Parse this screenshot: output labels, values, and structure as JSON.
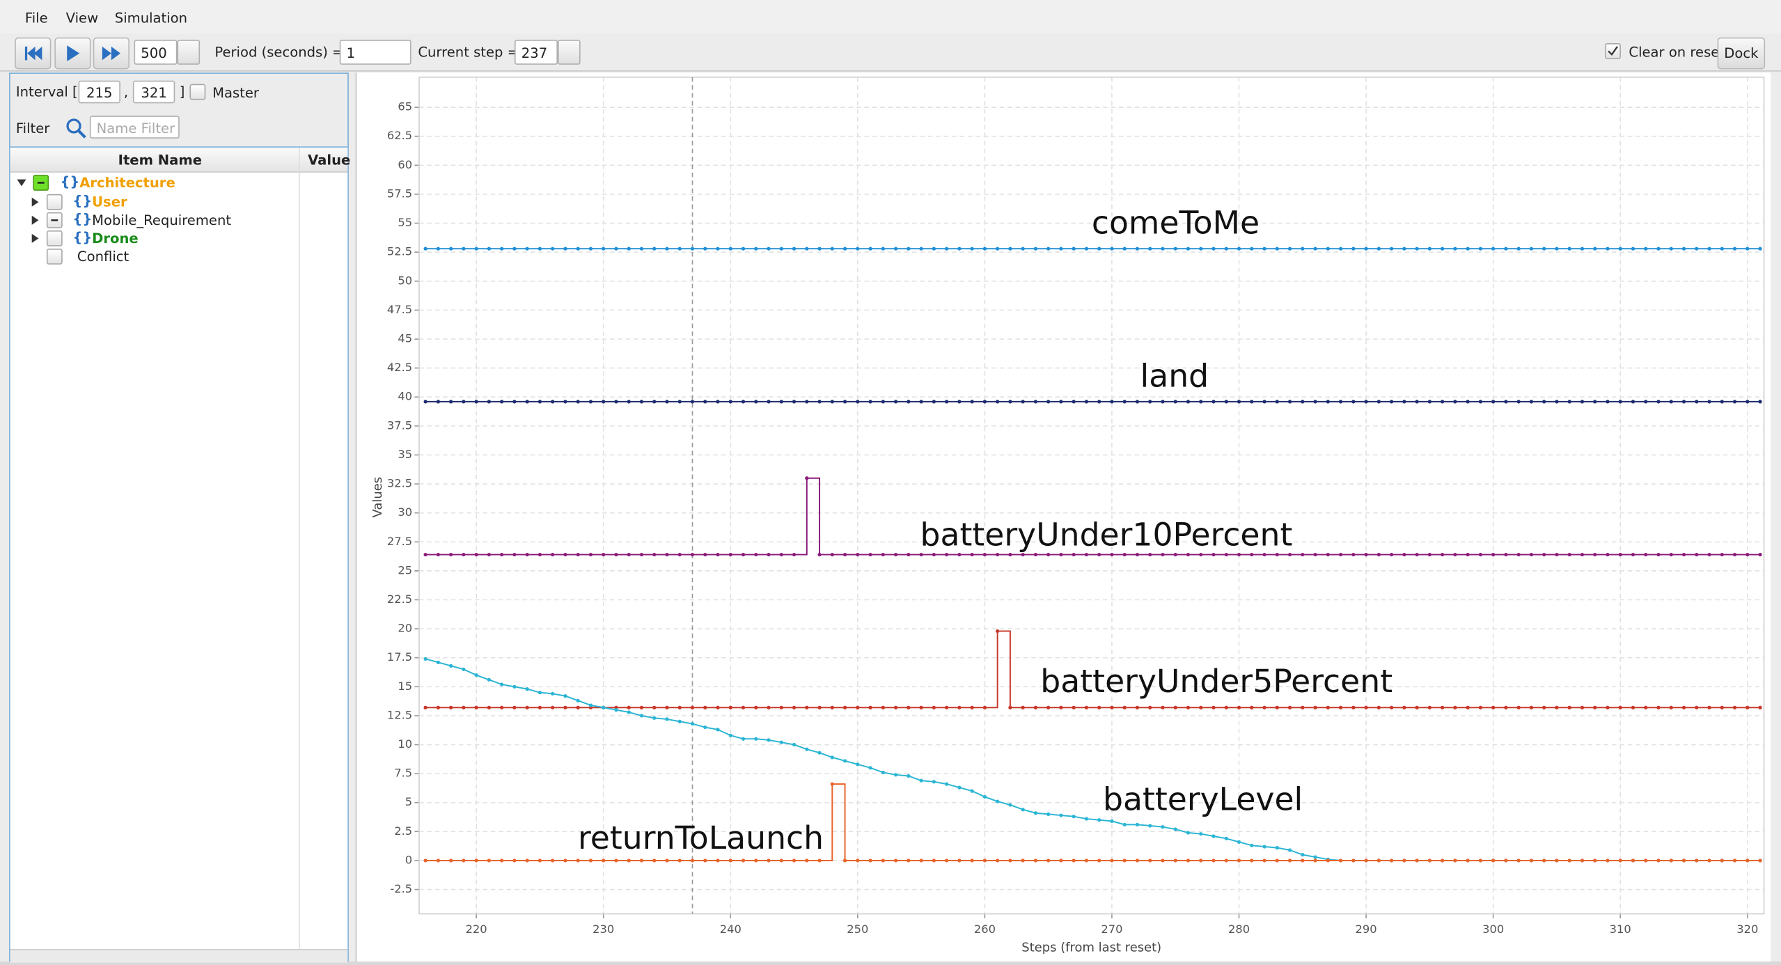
{
  "menu": [
    "File",
    "View",
    "Simulation"
  ],
  "toolbar": {
    "speed": 500,
    "period_label": "Period (seconds) =",
    "period": 1,
    "current_step_label": "Current step =",
    "current_step": 237,
    "clear_on_reset": "Clear on reset",
    "dock": "Dock"
  },
  "sidebar": {
    "interval_label": "Interval [",
    "interval_start": 215,
    "interval_sep": ",",
    "interval_end": 321,
    "interval_close": "]",
    "master": "Master",
    "filter_label": "Filter",
    "filter_placeholder": "Name Filter",
    "columns": [
      "Item Name",
      "Value"
    ],
    "tree": [
      {
        "label": "Architecture"
      },
      {
        "label": "User"
      },
      {
        "label": "Mobile_Requirement"
      },
      {
        "label": "Drone"
      },
      {
        "label": "Conflict"
      }
    ]
  },
  "chart_data": {
    "type": "line",
    "xlabel": "Steps (from last reset)",
    "ylabel": "Values",
    "grid": true,
    "x": [
      216,
      217,
      218,
      219,
      220,
      221,
      222,
      223,
      224,
      225,
      226,
      227,
      228,
      229,
      230,
      231,
      232,
      233,
      234,
      235,
      236,
      237,
      238,
      239,
      240,
      241,
      242,
      243,
      244,
      245,
      246,
      247,
      248,
      249,
      250,
      251,
      252,
      253,
      254,
      255,
      256,
      257,
      258,
      259,
      260,
      261,
      262,
      263,
      264,
      265,
      266,
      267,
      268,
      269,
      270,
      271,
      272,
      273,
      274,
      275,
      276,
      277,
      278,
      279,
      280,
      281,
      282,
      283,
      284,
      285,
      286,
      287,
      288,
      289,
      290,
      291,
      292,
      293,
      294,
      295,
      296,
      297,
      298,
      299,
      300,
      301,
      302,
      303,
      304,
      305,
      306,
      307,
      308,
      309,
      310,
      311,
      312,
      313,
      314,
      315,
      316,
      317,
      318,
      319,
      320,
      321
    ],
    "xlim": [
      215.5,
      321.3
    ],
    "xticks": [
      220,
      230,
      240,
      250,
      260,
      270,
      280,
      290,
      300,
      310,
      320
    ],
    "ylim": [
      -4.6,
      67.6
    ],
    "yticks": [
      -2.5,
      0,
      2.5,
      5,
      7.5,
      10,
      12.5,
      15,
      17.5,
      20,
      22.5,
      25,
      27.5,
      30,
      32.5,
      35,
      37.5,
      40,
      42.5,
      45,
      47.5,
      50,
      52.5,
      55,
      57.5,
      60,
      62.5,
      65
    ],
    "series": [
      {
        "name": "comeToMe",
        "color": "#1f8fd6",
        "drawstyle": "steps-post",
        "values": [
          52.8,
          52.8,
          52.8,
          52.8,
          52.8,
          52.8,
          52.8,
          52.8,
          52.8,
          52.8,
          52.8,
          52.8,
          52.8,
          52.8,
          52.8,
          52.8,
          52.8,
          52.8,
          52.8,
          52.8,
          52.8,
          52.8,
          52.8,
          52.8,
          52.8,
          52.8,
          52.8,
          52.8,
          52.8,
          52.8,
          52.8,
          52.8,
          52.8,
          52.8,
          52.8,
          52.8,
          52.8,
          52.8,
          52.8,
          52.8,
          52.8,
          52.8,
          52.8,
          52.8,
          52.8,
          52.8,
          52.8,
          52.8,
          52.8,
          52.8,
          52.8,
          52.8,
          52.8,
          52.8,
          52.8,
          52.8,
          52.8,
          52.8,
          52.8,
          52.8,
          52.8,
          52.8,
          52.8,
          52.8,
          52.8,
          52.8,
          52.8,
          52.8,
          52.8,
          52.8,
          52.8,
          52.8,
          52.8,
          52.8,
          52.8,
          52.8,
          52.8,
          52.8,
          52.8,
          52.8,
          52.8,
          52.8,
          52.8,
          52.8,
          52.8,
          52.8,
          52.8,
          52.8,
          52.8,
          52.8,
          52.8,
          52.8,
          52.8,
          52.8,
          52.8,
          52.8,
          52.8,
          52.8,
          52.8,
          52.8,
          52.8,
          52.8,
          52.8,
          52.8,
          52.8,
          52.8
        ]
      },
      {
        "name": "land",
        "color": "#1c2c6e",
        "drawstyle": "steps-post",
        "values": [
          39.6,
          39.6,
          39.6,
          39.6,
          39.6,
          39.6,
          39.6,
          39.6,
          39.6,
          39.6,
          39.6,
          39.6,
          39.6,
          39.6,
          39.6,
          39.6,
          39.6,
          39.6,
          39.6,
          39.6,
          39.6,
          39.6,
          39.6,
          39.6,
          39.6,
          39.6,
          39.6,
          39.6,
          39.6,
          39.6,
          39.6,
          39.6,
          39.6,
          39.6,
          39.6,
          39.6,
          39.6,
          39.6,
          39.6,
          39.6,
          39.6,
          39.6,
          39.6,
          39.6,
          39.6,
          39.6,
          39.6,
          39.6,
          39.6,
          39.6,
          39.6,
          39.6,
          39.6,
          39.6,
          39.6,
          39.6,
          39.6,
          39.6,
          39.6,
          39.6,
          39.6,
          39.6,
          39.6,
          39.6,
          39.6,
          39.6,
          39.6,
          39.6,
          39.6,
          39.6,
          39.6,
          39.6,
          39.6,
          39.6,
          39.6,
          39.6,
          39.6,
          39.6,
          39.6,
          39.6,
          39.6,
          39.6,
          39.6,
          39.6,
          39.6,
          39.6,
          39.6,
          39.6,
          39.6,
          39.6,
          39.6,
          39.6,
          39.6,
          39.6,
          39.6,
          39.6,
          39.6,
          39.6,
          39.6,
          39.6,
          39.6,
          39.6,
          39.6,
          39.6,
          39.6,
          39.6
        ]
      },
      {
        "name": "batteryUnder10Percent",
        "color": "#8b1a7a",
        "drawstyle": "steps-post",
        "values": [
          26.4,
          26.4,
          26.4,
          26.4,
          26.4,
          26.4,
          26.4,
          26.4,
          26.4,
          26.4,
          26.4,
          26.4,
          26.4,
          26.4,
          26.4,
          26.4,
          26.4,
          26.4,
          26.4,
          26.4,
          26.4,
          26.4,
          26.4,
          26.4,
          26.4,
          26.4,
          26.4,
          26.4,
          26.4,
          26.4,
          33,
          26.4,
          26.4,
          26.4,
          26.4,
          26.4,
          26.4,
          26.4,
          26.4,
          26.4,
          26.4,
          26.4,
          26.4,
          26.4,
          26.4,
          26.4,
          26.4,
          26.4,
          26.4,
          26.4,
          26.4,
          26.4,
          26.4,
          26.4,
          26.4,
          26.4,
          26.4,
          26.4,
          26.4,
          26.4,
          26.4,
          26.4,
          26.4,
          26.4,
          26.4,
          26.4,
          26.4,
          26.4,
          26.4,
          26.4,
          26.4,
          26.4,
          26.4,
          26.4,
          26.4,
          26.4,
          26.4,
          26.4,
          26.4,
          26.4,
          26.4,
          26.4,
          26.4,
          26.4,
          26.4,
          26.4,
          26.4,
          26.4,
          26.4,
          26.4,
          26.4,
          26.4,
          26.4,
          26.4,
          26.4,
          26.4,
          26.4,
          26.4,
          26.4,
          26.4,
          26.4,
          26.4,
          26.4,
          26.4,
          26.4,
          26.4
        ]
      },
      {
        "name": "batteryUnder5Percent",
        "color": "#c8382a",
        "drawstyle": "steps-post",
        "values": [
          13.2,
          13.2,
          13.2,
          13.2,
          13.2,
          13.2,
          13.2,
          13.2,
          13.2,
          13.2,
          13.2,
          13.2,
          13.2,
          13.2,
          13.2,
          13.2,
          13.2,
          13.2,
          13.2,
          13.2,
          13.2,
          13.2,
          13.2,
          13.2,
          13.2,
          13.2,
          13.2,
          13.2,
          13.2,
          13.2,
          13.2,
          13.2,
          13.2,
          13.2,
          13.2,
          13.2,
          13.2,
          13.2,
          13.2,
          13.2,
          13.2,
          13.2,
          13.2,
          13.2,
          13.2,
          19.8,
          13.2,
          13.2,
          13.2,
          13.2,
          13.2,
          13.2,
          13.2,
          13.2,
          13.2,
          13.2,
          13.2,
          13.2,
          13.2,
          13.2,
          13.2,
          13.2,
          13.2,
          13.2,
          13.2,
          13.2,
          13.2,
          13.2,
          13.2,
          13.2,
          13.2,
          13.2,
          13.2,
          13.2,
          13.2,
          13.2,
          13.2,
          13.2,
          13.2,
          13.2,
          13.2,
          13.2,
          13.2,
          13.2,
          13.2,
          13.2,
          13.2,
          13.2,
          13.2,
          13.2,
          13.2,
          13.2,
          13.2,
          13.2,
          13.2,
          13.2,
          13.2,
          13.2,
          13.2,
          13.2,
          13.2,
          13.2,
          13.2,
          13.2,
          13.2,
          13.2
        ]
      },
      {
        "name": "batteryLevel",
        "color": "#2bb5d4",
        "drawstyle": "default",
        "values": [
          17.4,
          17.1,
          16.8,
          16.5,
          16.0,
          15.6,
          15.2,
          15.0,
          14.8,
          14.5,
          14.4,
          14.2,
          13.8,
          13.4,
          13.2,
          13.0,
          12.8,
          12.5,
          12.3,
          12.2,
          12.0,
          11.8,
          11.5,
          11.3,
          10.8,
          10.5,
          10.5,
          10.4,
          10.2,
          10.0,
          9.6,
          9.3,
          8.9,
          8.6,
          8.3,
          8.0,
          7.6,
          7.4,
          7.3,
          6.9,
          6.8,
          6.6,
          6.3,
          6.0,
          5.5,
          5.1,
          4.8,
          4.4,
          4.1,
          4.0,
          3.9,
          3.8,
          3.6,
          3.5,
          3.4,
          3.1,
          3.1,
          3.0,
          2.9,
          2.7,
          2.4,
          2.3,
          2.1,
          1.9,
          1.6,
          1.3,
          1.2,
          1.1,
          0.9,
          0.5,
          0.3,
          0.1,
          0,
          0,
          0,
          0,
          0,
          0,
          0,
          0,
          0,
          0,
          0,
          0,
          0,
          0,
          0,
          0,
          0,
          0,
          0,
          0,
          0,
          0,
          0,
          0,
          0,
          0,
          0,
          0,
          0,
          0,
          0,
          0,
          0,
          0
        ]
      },
      {
        "name": "returnToLaunch",
        "color": "#e8642a",
        "drawstyle": "steps-post",
        "values": [
          0,
          0,
          0,
          0,
          0,
          0,
          0,
          0,
          0,
          0,
          0,
          0,
          0,
          0,
          0,
          0,
          0,
          0,
          0,
          0,
          0,
          0,
          0,
          0,
          0,
          0,
          0,
          0,
          0,
          0,
          0,
          0,
          6.6,
          0,
          0,
          0,
          0,
          0,
          0,
          0,
          0,
          0,
          0,
          0,
          0,
          0,
          0,
          0,
          0,
          0,
          0,
          0,
          0,
          0,
          0,
          0,
          0,
          0,
          0,
          0,
          0,
          0,
          0,
          0,
          0,
          0,
          0,
          0,
          0,
          0,
          0,
          0,
          0,
          0,
          0,
          0,
          0,
          0,
          0,
          0,
          0,
          0,
          0,
          0,
          0,
          0,
          0,
          0,
          0,
          0,
          0,
          0,
          0,
          0,
          0,
          0,
          0,
          0,
          0,
          0,
          0,
          0,
          0,
          0,
          0,
          0
        ]
      }
    ]
  }
}
